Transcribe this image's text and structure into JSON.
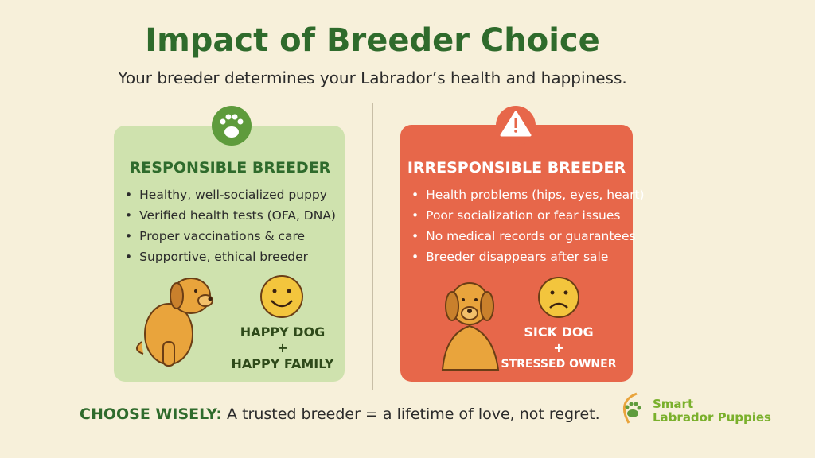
{
  "title": "Impact of Breeder Choice",
  "subtitle": "Your breeder determines your Labrador’s health and happiness.",
  "panels": [
    {
      "heading": "RESPONSIBLE BREEDER",
      "items": [
        "Healthy, well-socialized puppy",
        "Verified health tests (OFA, DNA)",
        "Proper vaccinations & care",
        "Supportive, ethical breeder"
      ],
      "outcome": [
        "HAPPY DOG",
        "+",
        "HAPPY FAMILY"
      ]
    },
    {
      "heading": "IRRESPONSIBLE BREEDER",
      "items": [
        "Health problems (hips, eyes, heart)",
        "Poor socialization or fear issues",
        "No medical records or guarantees",
        "Breeder disappears after sale"
      ],
      "outcome": [
        "SICK DOG",
        "+",
        "STRESSED OWNER"
      ]
    }
  ],
  "footer": {
    "lead": "CHOOSE WISELY:",
    "text": "A trusted breeder = a lifetime of love, not regret."
  },
  "logo": {
    "line1": "Smart",
    "line2": "Labrador Puppies"
  }
}
